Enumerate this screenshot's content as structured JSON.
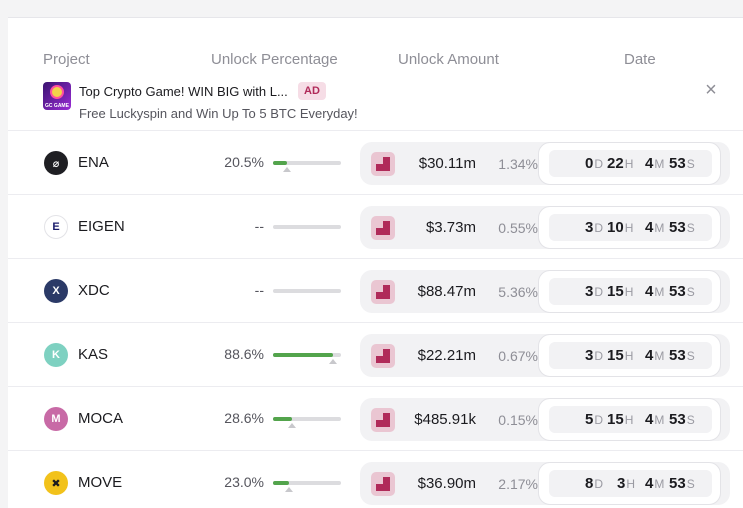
{
  "header": {
    "project": "Project",
    "unlock_percentage": "Unlock Percentage",
    "unlock_amount": "Unlock Amount",
    "date": "Date"
  },
  "ad": {
    "logo_text": "GC GAME",
    "title": "Top Crypto Game! WIN BIG with L...",
    "badge": "AD",
    "subtitle": "Free Luckyspin and Win Up To 5 BTC Everyday!",
    "close": "×"
  },
  "units": {
    "d": "D",
    "h": "H",
    "m": "M",
    "s": "S"
  },
  "rows": [
    {
      "name": "ENA",
      "icon_glyph": "⌀",
      "icon_bg": "#1f1f23",
      "icon_fg": "#ffffff",
      "percent_text": "20.5%",
      "percent": 20.5,
      "amount": "$30.11m",
      "share": "1.34%",
      "d": "0",
      "h": "22",
      "m": "4",
      "s": "53"
    },
    {
      "name": "EIGEN",
      "icon_glyph": "E",
      "icon_bg": "#ffffff",
      "icon_fg": "#1a1b6b",
      "percent_text": "--",
      "percent": null,
      "amount": "$3.73m",
      "share": "0.55%",
      "d": "3",
      "h": "10",
      "m": "4",
      "s": "53"
    },
    {
      "name": "XDC",
      "icon_glyph": "X",
      "icon_bg": "#2b3a67",
      "icon_fg": "#ffffff",
      "percent_text": "--",
      "percent": null,
      "amount": "$88.47m",
      "share": "5.36%",
      "d": "3",
      "h": "15",
      "m": "4",
      "s": "53"
    },
    {
      "name": "KAS",
      "icon_glyph": "K",
      "icon_bg": "#7ed1c1",
      "icon_fg": "#ffffff",
      "percent_text": "88.6%",
      "percent": 88.6,
      "amount": "$22.21m",
      "share": "0.67%",
      "d": "3",
      "h": "15",
      "m": "4",
      "s": "53"
    },
    {
      "name": "MOCA",
      "icon_glyph": "M",
      "icon_bg": "#c86aa6",
      "icon_fg": "#ffffff",
      "percent_text": "28.6%",
      "percent": 28.6,
      "amount": "$485.91k",
      "share": "0.15%",
      "d": "5",
      "h": "15",
      "m": "4",
      "s": "53"
    },
    {
      "name": "MOVE",
      "icon_glyph": "✖",
      "icon_bg": "#f2c21b",
      "icon_fg": "#1b1b1f",
      "percent_text": "23.0%",
      "percent": 23.0,
      "amount": "$36.90m",
      "share": "2.17%",
      "d": "8",
      "h": "3",
      "m": "4",
      "s": "53"
    }
  ],
  "colors": {
    "progress": "#53a44c",
    "accent": "#b02a59"
  }
}
